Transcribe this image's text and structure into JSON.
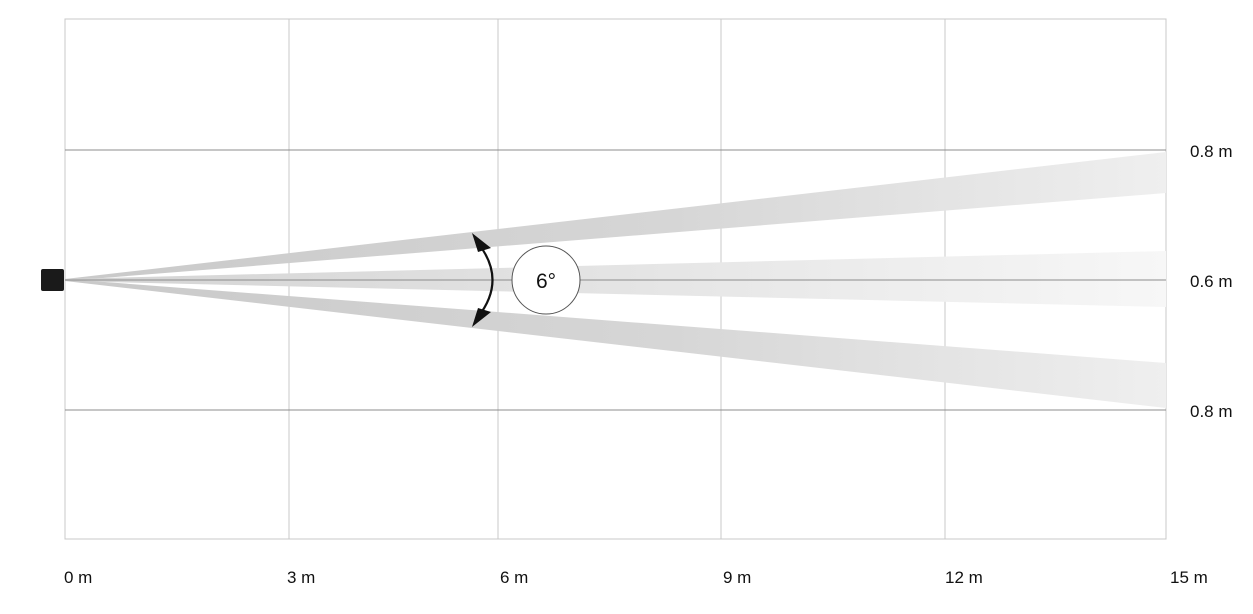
{
  "diagram": {
    "x_labels": [
      "0 m",
      "3 m",
      "6 m",
      "9 m",
      "12 m",
      "15 m"
    ],
    "y_labels": {
      "upper": "0.8 m",
      "middle": "0.6 m",
      "lower": "0.8 m"
    },
    "angle_label": "6°",
    "colors": {
      "beam": "#d2d2d2",
      "beam_fade": "#f6f6f6",
      "sensor": "#1a1a1a",
      "arrow": "#111111"
    }
  }
}
